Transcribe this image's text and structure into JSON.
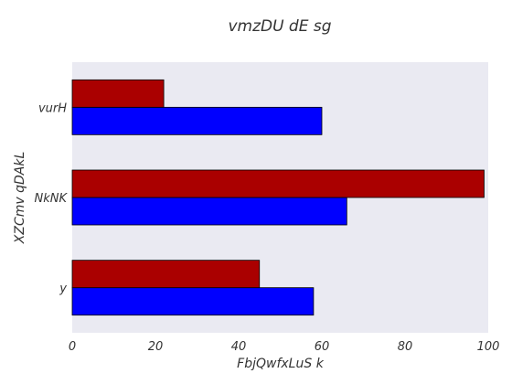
{
  "chart_data": {
    "type": "bar",
    "orientation": "horizontal",
    "title": "vmzDU dE sg",
    "xlabel": "FbjQwfxLuS k",
    "ylabel": "XZCmv qDAkL",
    "categories": [
      "y",
      "NkNK",
      "vurH"
    ],
    "series": [
      {
        "values": [
          58,
          66,
          60
        ],
        "color": "#0000ff"
      },
      {
        "values": [
          45,
          99,
          22
        ],
        "color": "#aa0000"
      }
    ],
    "xlim": [
      0,
      100
    ],
    "x_ticks": [
      "0",
      "20",
      "40",
      "60",
      "80",
      "100"
    ],
    "x_tick_values": [
      0,
      20,
      40,
      60,
      80,
      100
    ],
    "grid": false,
    "legend": "none",
    "plot_background": "#eaeaf2"
  }
}
